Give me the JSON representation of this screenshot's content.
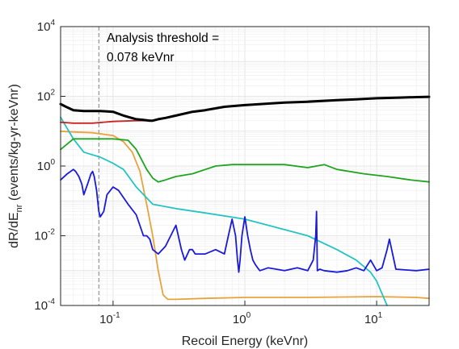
{
  "chart_data": {
    "type": "line",
    "title": "",
    "xlabel": "Recoil Energy (keVnr)",
    "ylabel_main": "dR/dE",
    "ylabel_sub": "nr",
    "ylabel_rest": " (events/kg-yr-keVnr)",
    "x_scale": "log",
    "y_scale": "log",
    "xlim": [
      0.04,
      25
    ],
    "ylim": [
      0.0001,
      10000
    ],
    "grid": true,
    "legend": "none",
    "x_ticks": [
      {
        "base": "10",
        "exp": "-1",
        "value": 0.1
      },
      {
        "base": "10",
        "exp": "0",
        "value": 1
      },
      {
        "base": "10",
        "exp": "1",
        "value": 10
      }
    ],
    "y_ticks": [
      {
        "base": "10",
        "exp": "-4",
        "value": 0.0001
      },
      {
        "base": "10",
        "exp": "-2",
        "value": 0.01
      },
      {
        "base": "10",
        "exp": "0",
        "value": 1
      },
      {
        "base": "10",
        "exp": "2",
        "value": 100
      },
      {
        "base": "10",
        "exp": "4",
        "value": 10000
      }
    ],
    "annotation": {
      "line1": "Analysis threshold =",
      "line2": "0.078 keVnr",
      "x": 0.078
    },
    "series": [
      {
        "color": "#e8a33c",
        "width": 1.8,
        "x": [
          0.04,
          0.05,
          0.07,
          0.1,
          0.12,
          0.14,
          0.16,
          0.18,
          0.2,
          0.22,
          0.24,
          0.26,
          0.3,
          0.5,
          1,
          3,
          10,
          20,
          25
        ],
        "y": [
          10,
          9.5,
          9,
          7.5,
          5,
          2.5,
          0.7,
          0.08,
          0.01,
          0.001,
          0.0002,
          0.00015,
          0.00015,
          0.00016,
          0.00017,
          0.00017,
          0.00018,
          0.00017,
          0.00016
        ]
      },
      {
        "color": "#25c4c4",
        "width": 1.8,
        "x": [
          0.04,
          0.05,
          0.06,
          0.08,
          0.1,
          0.12,
          0.15,
          0.2,
          0.3,
          0.5,
          1,
          2,
          3,
          5,
          7,
          9,
          10,
          12
        ],
        "y": [
          25,
          6,
          2.5,
          1.8,
          1.2,
          0.8,
          0.25,
          0.08,
          0.06,
          0.045,
          0.03,
          0.015,
          0.01,
          0.004,
          0.002,
          0.0009,
          0.0005,
          0.0001
        ]
      },
      {
        "color": "#1fa51f",
        "width": 1.8,
        "x": [
          0.04,
          0.05,
          0.1,
          0.13,
          0.15,
          0.18,
          0.2,
          0.22,
          0.25,
          0.3,
          0.4,
          0.6,
          0.8,
          1,
          2,
          3,
          4,
          5,
          8,
          12,
          18,
          25
        ],
        "y": [
          3,
          6,
          6,
          5.5,
          3,
          0.8,
          0.45,
          0.35,
          0.4,
          0.5,
          0.6,
          1,
          1.1,
          1.1,
          1.1,
          0.9,
          1.1,
          0.8,
          0.6,
          0.5,
          0.4,
          0.35
        ]
      },
      {
        "color": "#cc2222",
        "width": 1.8,
        "x": [
          0.04,
          0.05,
          0.07,
          0.1,
          0.15,
          0.2
        ],
        "y": [
          18,
          17,
          17,
          19,
          20,
          20
        ]
      },
      {
        "color": "#1a1adc",
        "width": 1.8,
        "x": [
          0.04,
          0.045,
          0.05,
          0.052,
          0.055,
          0.058,
          0.06,
          0.064,
          0.068,
          0.07,
          0.072,
          0.075,
          0.078,
          0.08,
          0.085,
          0.09,
          0.1,
          0.11,
          0.13,
          0.15,
          0.17,
          0.18,
          0.19,
          0.2,
          0.22,
          0.25,
          0.3,
          0.33,
          0.35,
          0.38,
          0.4,
          0.42,
          0.5,
          0.6,
          0.7,
          0.75,
          0.8,
          0.85,
          0.88,
          0.9,
          0.92,
          0.95,
          1.0,
          1.05,
          1.1,
          1.15,
          1.2,
          1.25,
          1.3,
          1.5,
          2,
          2.5,
          3,
          3.3,
          3.45,
          3.5,
          3.55,
          3.7,
          4,
          5,
          6,
          7,
          8,
          9,
          10,
          11,
          12,
          12.5,
          13,
          14,
          20,
          25
        ],
        "y": [
          0.4,
          0.6,
          0.8,
          0.7,
          0.5,
          0.3,
          0.15,
          0.3,
          0.6,
          0.7,
          0.5,
          0.2,
          0.05,
          0.035,
          0.05,
          0.15,
          0.25,
          0.2,
          0.08,
          0.04,
          0.01,
          0.01,
          0.008,
          0.004,
          0.003,
          0.005,
          0.02,
          0.004,
          0.002,
          0.004,
          0.004,
          0.003,
          0.003,
          0.004,
          0.003,
          0.01,
          0.03,
          0.01,
          0.002,
          0.0009,
          0.002,
          0.01,
          0.035,
          0.01,
          0.004,
          0.002,
          0.0015,
          0.0012,
          0.001,
          0.0012,
          0.001,
          0.0012,
          0.001,
          0.002,
          0.01,
          0.05,
          0.001,
          0.0011,
          0.001,
          0.0009,
          0.001,
          0.0012,
          0.001,
          0.002,
          0.001,
          0.0012,
          0.004,
          0.008,
          0.004,
          0.0011,
          0.001,
          0.0011
        ]
      },
      {
        "color": "#000000",
        "width": 3,
        "x": [
          0.04,
          0.045,
          0.05,
          0.06,
          0.08,
          0.1,
          0.12,
          0.15,
          0.17,
          0.19,
          0.2,
          0.22,
          0.25,
          0.3,
          0.4,
          0.5,
          0.7,
          1,
          2,
          3,
          5,
          7,
          10,
          15,
          20,
          25
        ],
        "y": [
          60,
          48,
          40,
          38,
          38,
          36,
          28,
          22,
          21,
          20,
          20,
          22,
          24,
          28,
          36,
          40,
          50,
          56,
          66,
          70,
          78,
          82,
          88,
          92,
          95,
          97
        ]
      }
    ]
  }
}
